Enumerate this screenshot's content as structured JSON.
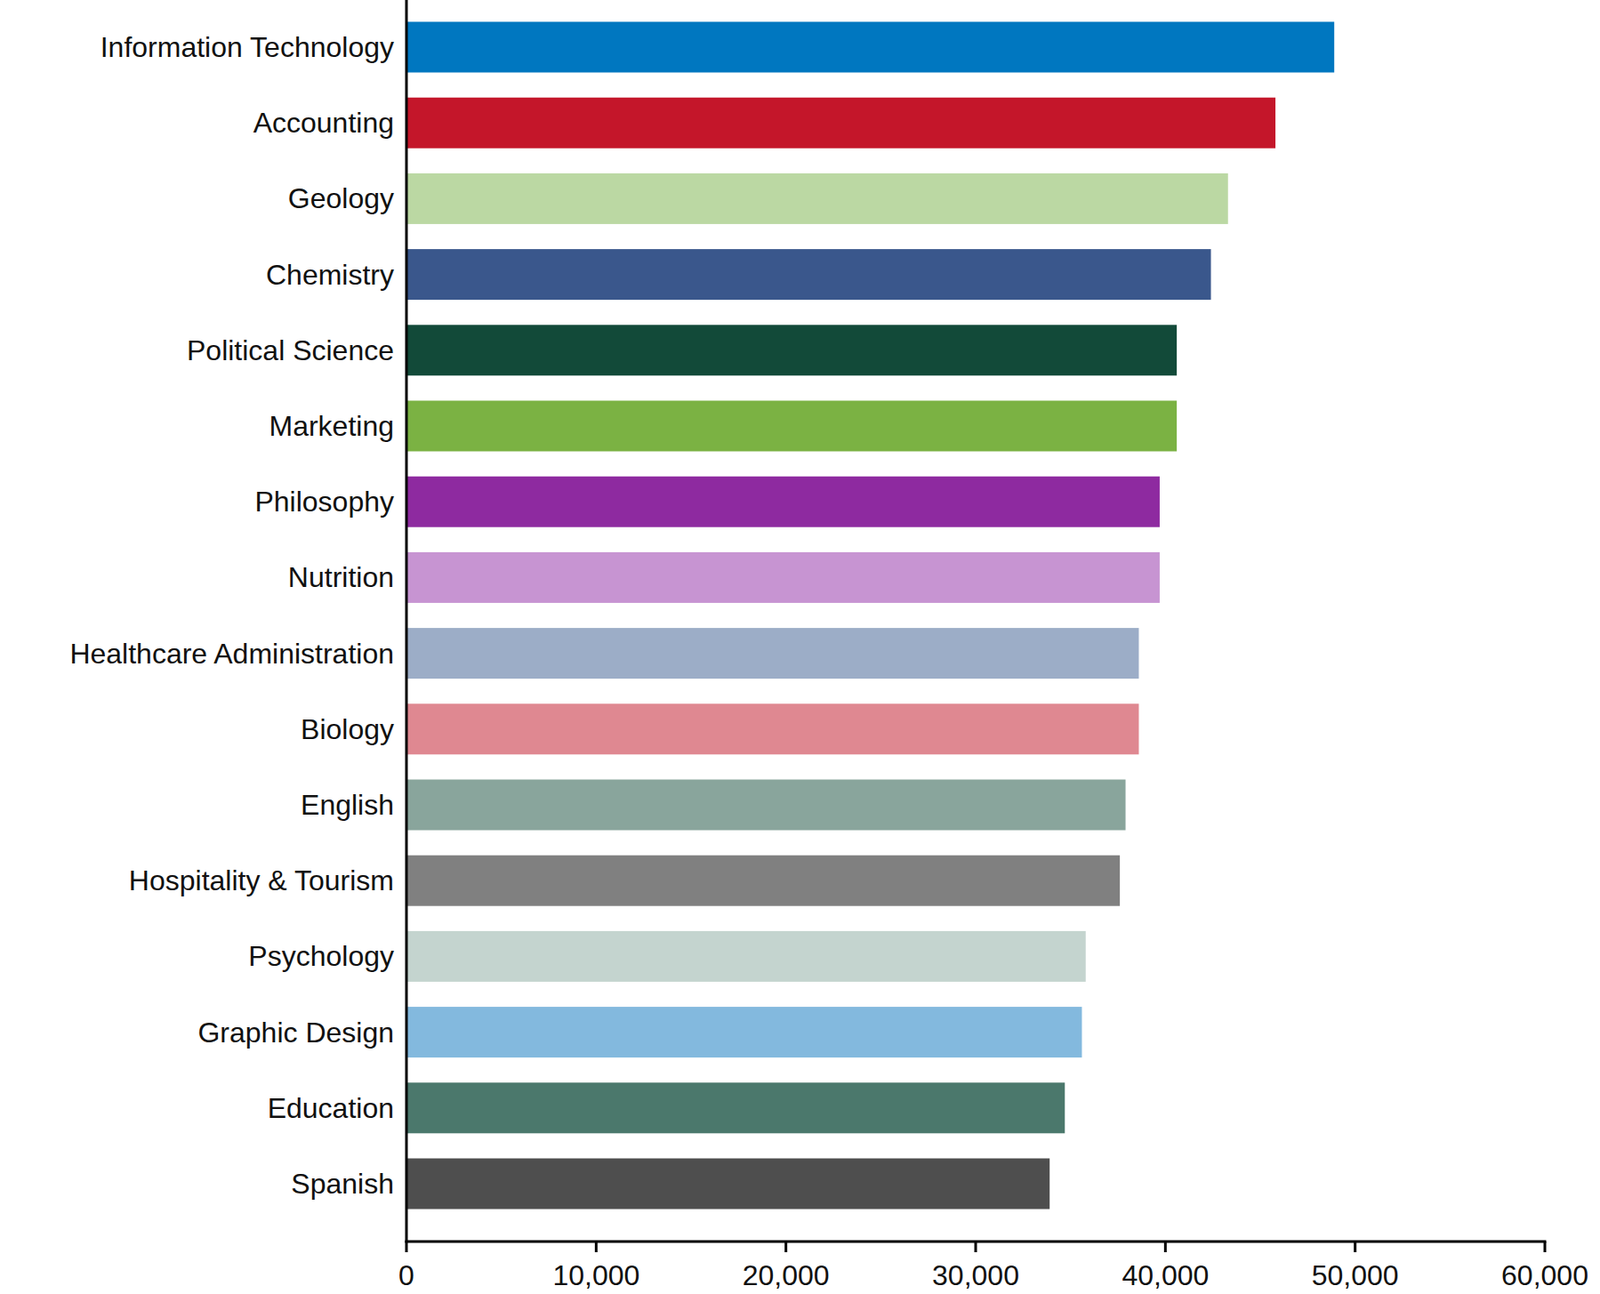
{
  "chart_data": {
    "type": "bar",
    "orientation": "horizontal",
    "grid": false,
    "categories": [
      "Information Technology",
      "Accounting",
      "Geology",
      "Chemistry",
      "Political Science",
      "Marketing",
      "Philosophy",
      "Nutrition",
      "Healthcare Administration",
      "Biology",
      "English",
      "Hospitality & Tourism",
      "Psychology",
      "Graphic Design",
      "Education",
      "Spanish"
    ],
    "values": [
      48900,
      45800,
      43300,
      42400,
      40600,
      40600,
      39700,
      39700,
      38600,
      38600,
      37900,
      37600,
      35800,
      35600,
      34700,
      33900
    ],
    "colors": [
      "#0077c0",
      "#c4162a",
      "#bbd8a3",
      "#3a578c",
      "#124a39",
      "#7bb243",
      "#8e2aa0",
      "#c794d2",
      "#9cadc7",
      "#df8891",
      "#89a59c",
      "#808080",
      "#c4d4cf",
      "#83b9de",
      "#4b786c",
      "#4e4e4e"
    ],
    "ylim": [
      0,
      60000
    ],
    "yticks": [
      0,
      {
        "value": 10000,
        "label": "10,000"
      },
      {
        "value": 20000,
        "label": "20,000"
      },
      {
        "value": 30000,
        "label": "30,000"
      },
      {
        "value": 40000,
        "label": "40,000"
      },
      {
        "value": 50000,
        "label": "50,000"
      },
      {
        "value": 60000,
        "label": "60,000"
      }
    ]
  }
}
